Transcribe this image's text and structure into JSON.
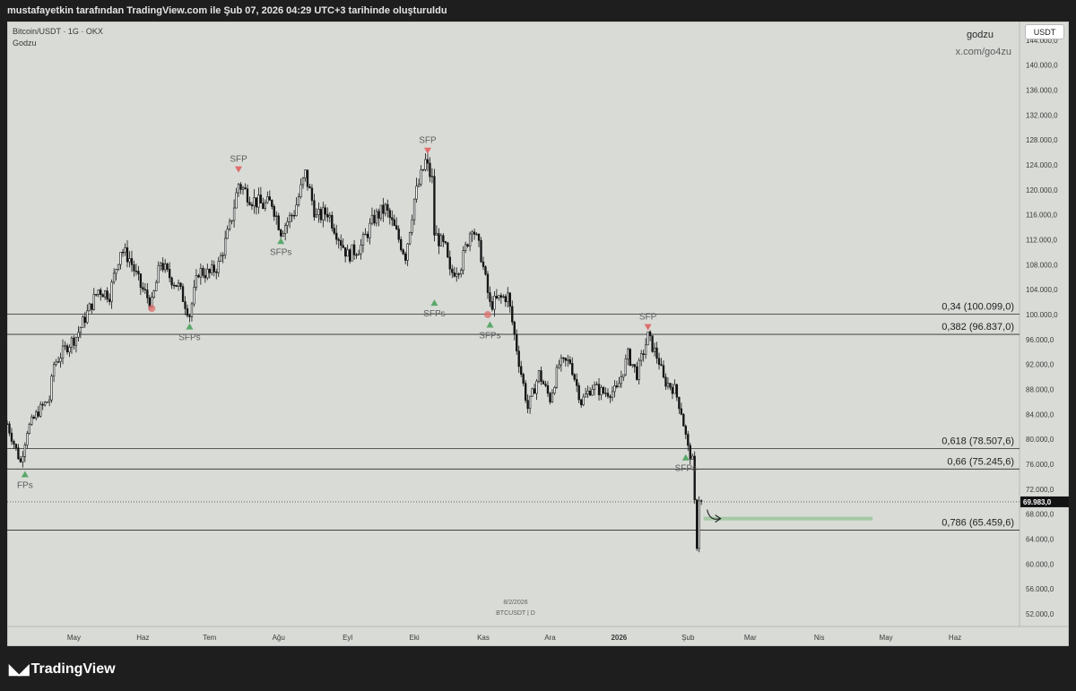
{
  "header": {
    "title": "mustafayetkin tarafından TradingView.com ile Şub 07, 2026 04:29 UTC+3 tarihinde oluşturuldu"
  },
  "chart_info": {
    "symbol_line": "Bitcoin/USDT · 1G · OKX",
    "indicator": "Godzu"
  },
  "watermark": {
    "name": "godzu",
    "link": "x.com/go4zu"
  },
  "currency_badge": "USDT",
  "stamp": {
    "date": "8/2/2026",
    "symbol": "BTCUSDT | D"
  },
  "footer": {
    "brand": "TradingView"
  },
  "colors": {
    "background": "#d8dbd6",
    "candle": "#141414",
    "sfp_up": "#5aa86b",
    "sfp_down": "#e06d6d",
    "target_zone": "#a5c9a5",
    "price_tag": "#131313"
  },
  "chart_data": {
    "type": "candlestick",
    "title": "Bitcoin/USDT · 1G · OKX",
    "scale": "linear",
    "ylim": [
      50000,
      147000
    ],
    "grid": false,
    "y_ticks": [
      52000,
      56000,
      60000,
      64000,
      68000,
      72000,
      76000,
      80000,
      84000,
      88000,
      92000,
      96000,
      100000,
      104000,
      108000,
      112000,
      116000,
      120000,
      124000,
      128000,
      132000,
      136000,
      140000,
      144000
    ],
    "y_tick_labels": [
      "52.000,0",
      "56.000,0",
      "60.000,0",
      "64.000,0",
      "68.000,0",
      "72.000,0",
      "76.000,0",
      "80.000,0",
      "84.000,0",
      "88.000,0",
      "92.000,0",
      "96.000,0",
      "100.000,0",
      "104.000,0",
      "108.000,0",
      "112.000,0",
      "116.000,0",
      "120.000,0",
      "124.000,0",
      "128.000,0",
      "132.000,0",
      "136.000,0",
      "140.000,0",
      "144.000,0"
    ],
    "x_ticks": [
      {
        "label": "May",
        "date": "2025-05-01"
      },
      {
        "label": "Haz",
        "date": "2025-06-01"
      },
      {
        "label": "Tem",
        "date": "2025-07-01"
      },
      {
        "label": "Ağu",
        "date": "2025-08-01"
      },
      {
        "label": "Eyl",
        "date": "2025-09-01"
      },
      {
        "label": "Eki",
        "date": "2025-10-01"
      },
      {
        "label": "Kas",
        "date": "2025-11-01"
      },
      {
        "label": "Ara",
        "date": "2025-12-01"
      },
      {
        "label": "2026",
        "date": "2026-01-01"
      },
      {
        "label": "Şub",
        "date": "2026-02-01"
      },
      {
        "label": "Mar",
        "date": "2026-03-01"
      },
      {
        "label": "Nis",
        "date": "2026-04-01"
      },
      {
        "label": "May",
        "date": "2026-05-01"
      },
      {
        "label": "Haz",
        "date": "2026-06-01"
      }
    ],
    "x_range": [
      "2025-04-01",
      "2026-06-30"
    ],
    "last_price": {
      "value": 69983,
      "label": "69.983,0"
    },
    "fib_levels": [
      {
        "ratio": "0,34",
        "value": 100099.0,
        "label": "0,34 (100.099,0)"
      },
      {
        "ratio": "0,382",
        "value": 96837.0,
        "label": "0,382 (96.837,0)"
      },
      {
        "ratio": "0,618",
        "value": 78507.6,
        "label": "0,618 (78.507,6)"
      },
      {
        "ratio": "0,66",
        "value": 75245.6,
        "label": "0,66 (75.245,6)"
      },
      {
        "ratio": "0,786",
        "value": 65459.6,
        "label": "0,786 (65.459,6)"
      }
    ],
    "target_zone": {
      "value": 67300,
      "from": "2026-02-08",
      "to": "2026-04-25"
    },
    "sfp_markers": [
      {
        "label": "FPs",
        "date": "2025-04-09",
        "direction": "up",
        "price": 74500
      },
      {
        "label": "",
        "date": "2025-06-05",
        "direction": "down",
        "price": 101000
      },
      {
        "label": "SFPs",
        "date": "2025-06-22",
        "direction": "up",
        "price": 98200
      },
      {
        "label": "SFP",
        "date": "2025-07-14",
        "direction": "down",
        "price": 123200
      },
      {
        "label": "SFPs",
        "date": "2025-08-02",
        "direction": "up",
        "price": 111900
      },
      {
        "label": "SFP",
        "date": "2025-10-07",
        "direction": "down",
        "price": 126200
      },
      {
        "label": "SFPs",
        "date": "2025-10-10",
        "direction": "up",
        "price": 102000
      },
      {
        "label": "",
        "date": "2025-11-03",
        "direction": "down",
        "price": 100000
      },
      {
        "label": "SFPs",
        "date": "2025-11-04",
        "direction": "up",
        "price": 98500
      },
      {
        "label": "SFP",
        "date": "2026-01-14",
        "direction": "down",
        "price": 97900
      },
      {
        "label": "SFPs",
        "date": "2026-01-31",
        "direction": "up",
        "price": 77200
      }
    ],
    "price_path": [
      [
        "2025-04-01",
        82500
      ],
      [
        "2025-04-07",
        76300
      ],
      [
        "2025-04-10",
        81500
      ],
      [
        "2025-04-15",
        84500
      ],
      [
        "2025-04-20",
        86500
      ],
      [
        "2025-04-22",
        92000
      ],
      [
        "2025-04-28",
        95000
      ],
      [
        "2025-05-02",
        96500
      ],
      [
        "2025-05-08",
        101000
      ],
      [
        "2025-05-12",
        104000
      ],
      [
        "2025-05-17",
        103200
      ],
      [
        "2025-05-22",
        110500
      ],
      [
        "2025-05-26",
        109000
      ],
      [
        "2025-05-31",
        104500
      ],
      [
        "2025-06-05",
        101700
      ],
      [
        "2025-06-09",
        108500
      ],
      [
        "2025-06-12",
        106500
      ],
      [
        "2025-06-17",
        104500
      ],
      [
        "2025-06-22",
        100000
      ],
      [
        "2025-06-26",
        107000
      ],
      [
        "2025-07-01",
        106500
      ],
      [
        "2025-07-05",
        108000
      ],
      [
        "2025-07-10",
        114000
      ],
      [
        "2025-07-14",
        121000
      ],
      [
        "2025-07-20",
        118500
      ],
      [
        "2025-07-25",
        117500
      ],
      [
        "2025-07-29",
        118000
      ],
      [
        "2025-08-02",
        113500
      ],
      [
        "2025-08-08",
        116500
      ],
      [
        "2025-08-13",
        122500
      ],
      [
        "2025-08-18",
        115500
      ],
      [
        "2025-08-23",
        116500
      ],
      [
        "2025-08-28",
        112500
      ],
      [
        "2025-09-01",
        109500
      ],
      [
        "2025-09-07",
        111000
      ],
      [
        "2025-09-13",
        115500
      ],
      [
        "2025-09-18",
        117000
      ],
      [
        "2025-09-23",
        113000
      ],
      [
        "2025-09-27",
        109500
      ],
      [
        "2025-10-01",
        118500
      ],
      [
        "2025-10-06",
        124500
      ],
      [
        "2025-10-09",
        121500
      ],
      [
        "2025-10-10",
        113000
      ],
      [
        "2025-10-15",
        110500
      ],
      [
        "2025-10-17",
        106500
      ],
      [
        "2025-10-22",
        108000
      ],
      [
        "2025-10-27",
        114500
      ],
      [
        "2025-10-31",
        109500
      ],
      [
        "2025-11-04",
        101500
      ],
      [
        "2025-11-08",
        102500
      ],
      [
        "2025-11-12",
        103000
      ],
      [
        "2025-11-17",
        92500
      ],
      [
        "2025-11-21",
        85000
      ],
      [
        "2025-11-26",
        90500
      ],
      [
        "2025-12-01",
        86500
      ],
      [
        "2025-12-05",
        92000
      ],
      [
        "2025-12-10",
        92500
      ],
      [
        "2025-12-15",
        86000
      ],
      [
        "2025-12-20",
        88500
      ],
      [
        "2025-12-25",
        87500
      ],
      [
        "2025-12-31",
        87800
      ],
      [
        "2026-01-05",
        93500
      ],
      [
        "2026-01-09",
        90500
      ],
      [
        "2026-01-14",
        96500
      ],
      [
        "2026-01-19",
        92500
      ],
      [
        "2026-01-21",
        89500
      ],
      [
        "2026-01-26",
        88000
      ],
      [
        "2026-01-29",
        84500
      ],
      [
        "2026-02-01",
        78500
      ],
      [
        "2026-02-03",
        76500
      ],
      [
        "2026-02-05",
        63000
      ],
      [
        "2026-02-06",
        70500
      ],
      [
        "2026-02-07",
        69983
      ]
    ]
  }
}
